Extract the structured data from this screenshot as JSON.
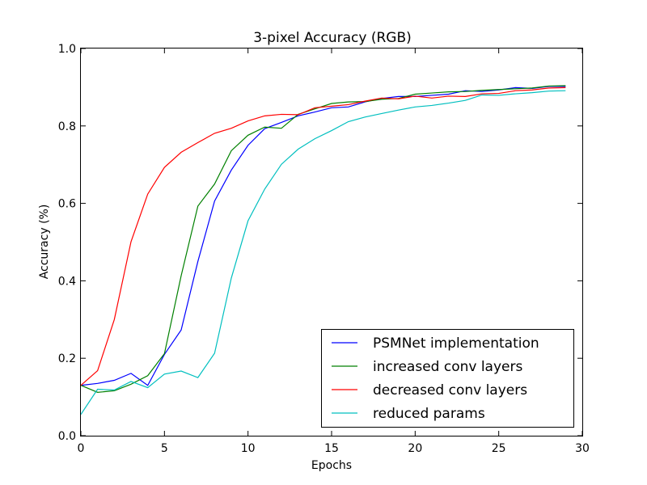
{
  "chart_data": {
    "type": "line",
    "title": "3-pixel Accuracy (RGB)",
    "xlabel": "Epochs",
    "ylabel": "Accuracy (%)",
    "xlim": [
      0,
      30
    ],
    "ylim": [
      0.0,
      1.0
    ],
    "xticks": [
      0,
      5,
      10,
      15,
      20,
      25,
      30
    ],
    "yticks": [
      0.0,
      0.2,
      0.4,
      0.6,
      0.8,
      1.0
    ],
    "xtick_labels": [
      "0",
      "5",
      "10",
      "15",
      "20",
      "25",
      "30"
    ],
    "ytick_labels": [
      "0.0",
      "0.2",
      "0.4",
      "0.6",
      "0.8",
      "1.0"
    ],
    "grid": false,
    "legend_position": "lower-right",
    "x": [
      0,
      1,
      2,
      3,
      4,
      5,
      6,
      7,
      8,
      9,
      10,
      11,
      12,
      13,
      14,
      15,
      16,
      17,
      18,
      19,
      20,
      21,
      22,
      23,
      24,
      25,
      26,
      27,
      28,
      29
    ],
    "series": [
      {
        "name": "PSMNet implementation",
        "color": "#0000ff",
        "values": [
          0.13,
          0.135,
          0.143,
          0.161,
          0.13,
          0.21,
          0.273,
          0.45,
          0.606,
          0.686,
          0.75,
          0.793,
          0.809,
          0.826,
          0.836,
          0.847,
          0.849,
          0.862,
          0.871,
          0.876,
          0.876,
          0.879,
          0.882,
          0.891,
          0.889,
          0.893,
          0.899,
          0.897,
          0.902,
          0.902
        ]
      },
      {
        "name": "increased conv layers",
        "color": "#008000",
        "values": [
          0.13,
          0.112,
          0.116,
          0.133,
          0.155,
          0.212,
          0.413,
          0.593,
          0.65,
          0.736,
          0.776,
          0.797,
          0.794,
          0.83,
          0.844,
          0.858,
          0.862,
          0.863,
          0.869,
          0.871,
          0.882,
          0.885,
          0.888,
          0.889,
          0.892,
          0.894,
          0.896,
          0.898,
          0.903,
          0.904
        ]
      },
      {
        "name": "decreased conv layers",
        "color": "#ff0000",
        "values": [
          0.13,
          0.168,
          0.3,
          0.501,
          0.624,
          0.693,
          0.732,
          0.757,
          0.781,
          0.794,
          0.813,
          0.826,
          0.83,
          0.829,
          0.847,
          0.851,
          0.855,
          0.864,
          0.872,
          0.87,
          0.877,
          0.872,
          0.877,
          0.876,
          0.883,
          0.884,
          0.891,
          0.893,
          0.898,
          0.899
        ]
      },
      {
        "name": "reduced params",
        "color": "#00bfbf",
        "values": [
          0.055,
          0.12,
          0.118,
          0.14,
          0.124,
          0.159,
          0.167,
          0.15,
          0.213,
          0.407,
          0.555,
          0.637,
          0.701,
          0.74,
          0.767,
          0.788,
          0.811,
          0.823,
          0.832,
          0.841,
          0.849,
          0.853,
          0.859,
          0.866,
          0.88,
          0.879,
          0.883,
          0.886,
          0.89,
          0.891
        ]
      }
    ]
  }
}
